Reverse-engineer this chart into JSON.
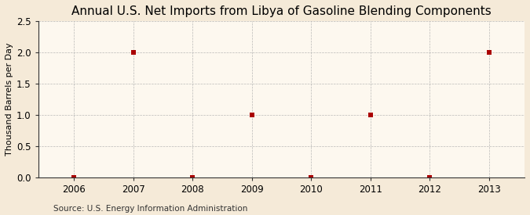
{
  "title": "Annual U.S. Net Imports from Libya of Gasoline Blending Components",
  "ylabel": "Thousand Barrels per Day",
  "source": "Source: U.S. Energy Information Administration",
  "x_values": [
    2006,
    2007,
    2008,
    2009,
    2010,
    2011,
    2012,
    2013
  ],
  "y_values": [
    0,
    2.0,
    0,
    1.0,
    0,
    1.0,
    0,
    2.0
  ],
  "xlim": [
    2005.4,
    2013.6
  ],
  "ylim": [
    0,
    2.5
  ],
  "yticks": [
    0.0,
    0.5,
    1.0,
    1.5,
    2.0,
    2.5
  ],
  "xticks": [
    2006,
    2007,
    2008,
    2009,
    2010,
    2011,
    2012,
    2013
  ],
  "marker_color": "#aa0000",
  "marker": "s",
  "marker_size": 4,
  "bg_color": "#f5ead8",
  "plot_bg_color": "#fdf8ef",
  "grid_color": "#aaaaaa",
  "spine_color": "#333333",
  "title_fontsize": 11,
  "label_fontsize": 8,
  "tick_fontsize": 8.5,
  "source_fontsize": 7.5
}
